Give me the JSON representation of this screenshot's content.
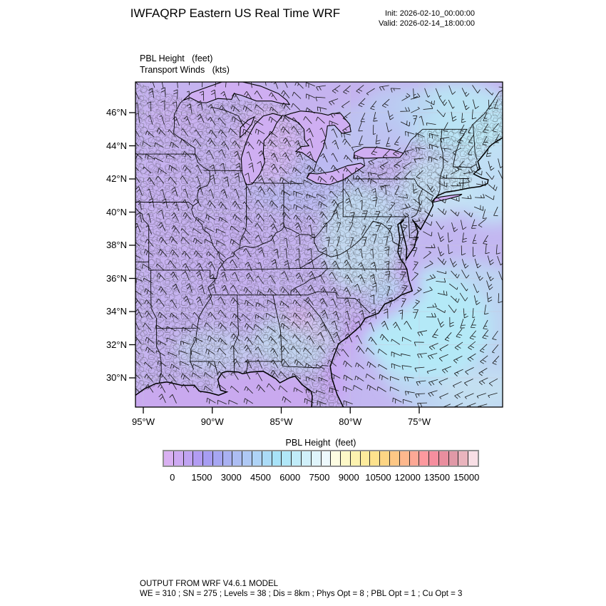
{
  "header": {
    "title": "IWFAQRP Eastern US Real Time WRF",
    "init": "Init: 2026-02-10_00:00:00",
    "valid": "Valid: 2026-02-14_18:00:00"
  },
  "map": {
    "field_label_1": "PBL Height   (feet)",
    "field_label_2": "Transport Winds   (kts)",
    "lat_ticks": [
      "46°N",
      "44°N",
      "42°N",
      "40°N",
      "38°N",
      "36°N",
      "34°N",
      "32°N",
      "30°N"
    ],
    "lon_ticks": [
      "95°W",
      "90°W",
      "85°W",
      "80°W",
      "75°W"
    ]
  },
  "colorbar": {
    "title": "PBL Height  (feet)",
    "tick_labels": [
      "0",
      "1500",
      "3000",
      "4500",
      "6000",
      "7500",
      "9000",
      "10500",
      "12000",
      "13500",
      "15000"
    ],
    "min": 0,
    "max": 15000,
    "cell_interval": 500,
    "colors": [
      "#d9b0f2",
      "#cda9f2",
      "#c0a3f2",
      "#b29cf2",
      "#a79df2",
      "#a6a6f2",
      "#a9b1f2",
      "#acbdf3",
      "#aec8f4",
      "#aed3f6",
      "#aadbf7",
      "#a7e2f8",
      "#b0e7f8",
      "#c0ecf9",
      "#d0f0fa",
      "#dff4fb",
      "#edf9fd",
      "#fdfce2",
      "#fdf8c7",
      "#fdf3af",
      "#fdeb9c",
      "#fde28d",
      "#fdd584",
      "#fdc785",
      "#fdb88d",
      "#fda895",
      "#fd999e",
      "#f68e9e",
      "#e98e9e",
      "#e099a7",
      "#e9b4bd",
      "#f8dfe5"
    ]
  },
  "footer": {
    "line1": "OUTPUT FROM WRF V4.6.1 MODEL",
    "line2": "WE = 310 ; SN = 275 ; Levels = 38 ; Dis = 8km ; Phys Opt = 8 ; PBL Opt = 1 ; Cu Opt = 3"
  }
}
